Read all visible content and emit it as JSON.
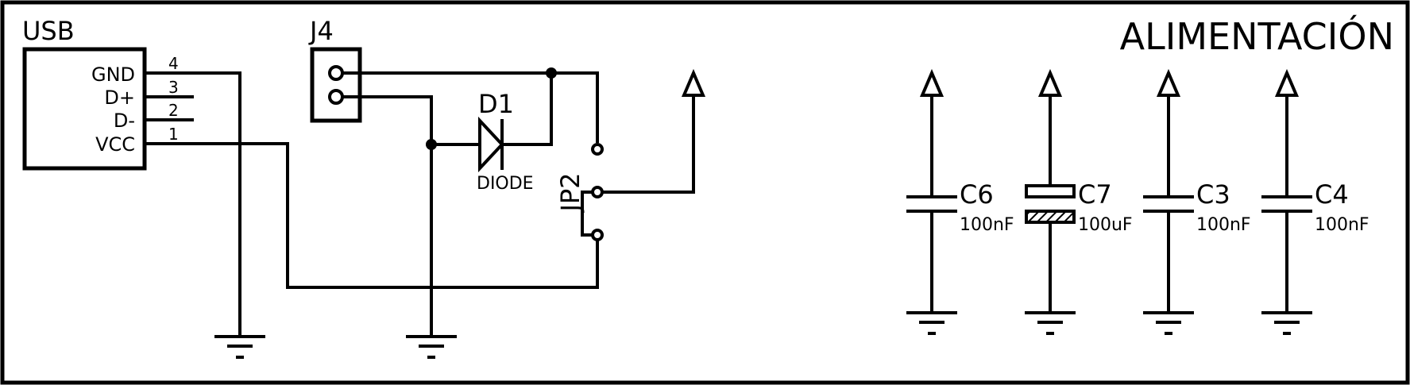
{
  "title": "ALIMENTACIÓN",
  "usb": {
    "name": "USB",
    "pins": [
      {
        "label": "GND",
        "number": "4"
      },
      {
        "label": "D+",
        "number": "3"
      },
      {
        "label": "D-",
        "number": "2"
      },
      {
        "label": "VCC",
        "number": "1"
      }
    ]
  },
  "connector": {
    "name": "J4"
  },
  "diode": {
    "name": "D1",
    "value": "DIODE"
  },
  "jumper": {
    "name": "JP2"
  },
  "capacitors": [
    {
      "name": "C6",
      "value": "100nF"
    },
    {
      "name": "C7",
      "value": "100uF"
    },
    {
      "name": "C3",
      "value": "100nF"
    },
    {
      "name": "C4",
      "value": "100nF"
    }
  ],
  "colors": {
    "ink": "#000000",
    "background": "#ffffff"
  }
}
